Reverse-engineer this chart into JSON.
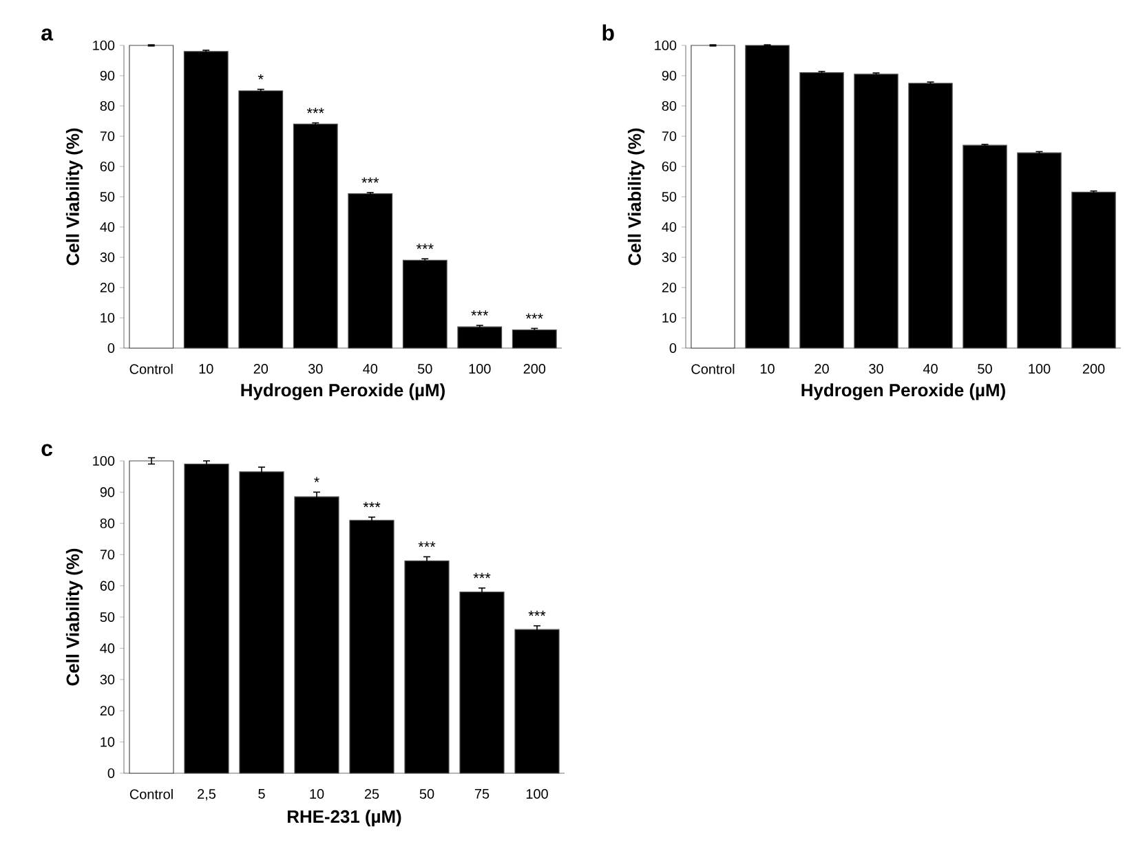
{
  "chart_data": [
    {
      "type": "bar",
      "title": "a",
      "xlabel": "Hydrogen Peroxide (µM)",
      "ylabel": "Cell Viability (%)",
      "categories": [
        "Control",
        "10",
        "20",
        "30",
        "40",
        "50",
        "100",
        "200"
      ],
      "values": [
        100,
        98,
        85,
        74,
        51,
        29,
        7,
        6
      ],
      "errors": [
        0.2,
        0.4,
        0.5,
        0.4,
        0.4,
        0.5,
        0.5,
        0.5
      ],
      "colors": [
        "#ffffff",
        "#000000",
        "#000000",
        "#000000",
        "#000000",
        "#000000",
        "#000000",
        "#000000"
      ],
      "ylim": [
        0,
        100
      ],
      "yticks": [
        0,
        10,
        20,
        30,
        40,
        50,
        60,
        70,
        80,
        90,
        100
      ],
      "annotations": [
        {
          "text": "*",
          "x": "20",
          "y": 85
        },
        {
          "text": "***",
          "x": "30",
          "y": 74
        },
        {
          "text": "***",
          "x": "40",
          "y": 51
        },
        {
          "text": "***",
          "x": "50",
          "y": 29
        },
        {
          "text": "***",
          "x": "100",
          "y": 7
        },
        {
          "text": "***",
          "x": "200",
          "y": 6
        }
      ]
    },
    {
      "type": "bar",
      "title": "b",
      "xlabel": "Hydrogen Peroxide (µM)",
      "ylabel": "Cell Viability (%)",
      "categories": [
        "Control",
        "10",
        "20",
        "30",
        "40",
        "50",
        "100",
        "200"
      ],
      "values": [
        100,
        100,
        91,
        90.5,
        87.5,
        67,
        64.5,
        51.5
      ],
      "errors": [
        0.2,
        0.2,
        0.4,
        0.4,
        0.4,
        0.3,
        0.4,
        0.4
      ],
      "colors": [
        "#ffffff",
        "#000000",
        "#000000",
        "#000000",
        "#000000",
        "#000000",
        "#000000",
        "#000000"
      ],
      "ylim": [
        0,
        100
      ],
      "yticks": [
        0,
        10,
        20,
        30,
        40,
        50,
        60,
        70,
        80,
        90,
        100
      ]
    },
    {
      "type": "bar",
      "title": "c",
      "xlabel": "RHE-231 (µM)",
      "ylabel": "Cell Viability (%)",
      "categories": [
        "Control",
        "2,5",
        "5",
        "10",
        "25",
        "50",
        "75",
        "100"
      ],
      "values": [
        100,
        99,
        96.5,
        88.5,
        81,
        68,
        58,
        46
      ],
      "errors": [
        1,
        1,
        1.5,
        1.5,
        1,
        1.3,
        1.3,
        1.2
      ],
      "colors": [
        "#ffffff",
        "#000000",
        "#000000",
        "#000000",
        "#000000",
        "#000000",
        "#000000",
        "#000000"
      ],
      "ylim": [
        0,
        100
      ],
      "yticks": [
        0,
        10,
        20,
        30,
        40,
        50,
        60,
        70,
        80,
        90,
        100
      ],
      "annotations": [
        {
          "text": "*",
          "x": "10",
          "y": 88.5
        },
        {
          "text": "***",
          "x": "25",
          "y": 81
        },
        {
          "text": "***",
          "x": "50",
          "y": 68
        },
        {
          "text": "***",
          "x": "75",
          "y": 58
        },
        {
          "text": "***",
          "x": "100",
          "y": 46
        }
      ]
    }
  ]
}
